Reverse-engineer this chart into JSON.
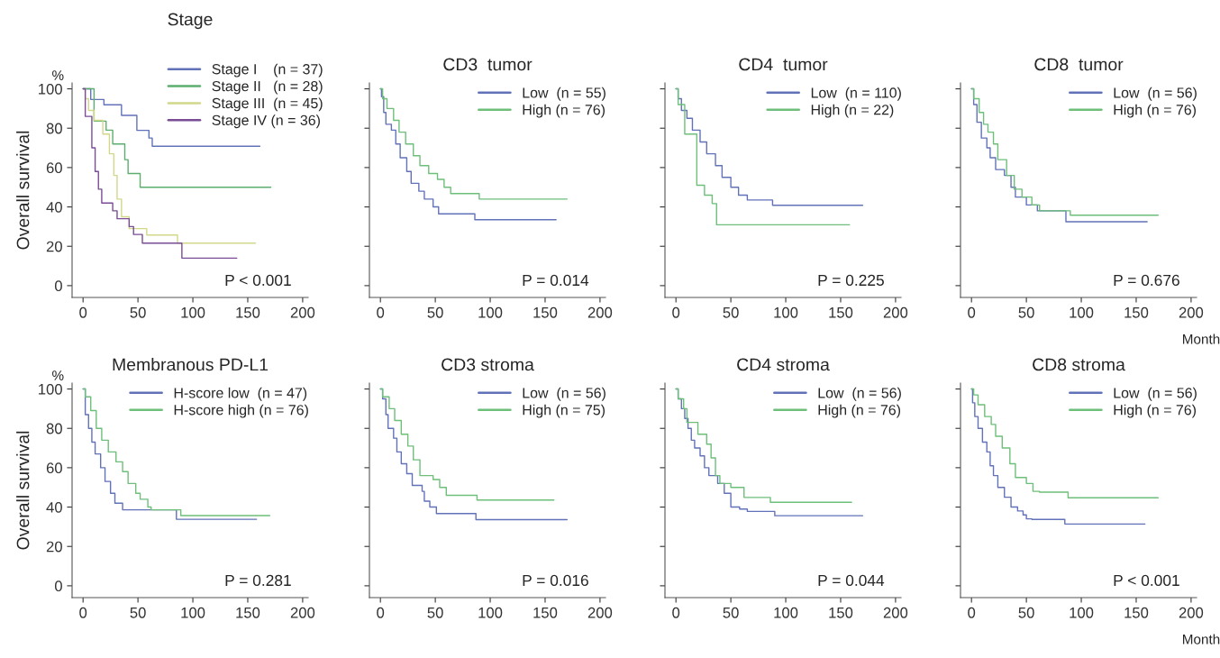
{
  "chart_data": [
    {
      "type": "step",
      "title": "Stage",
      "ylabel": "Overall survival",
      "annotations": [
        "%",
        "P < 0.001"
      ],
      "xlim": [
        -10,
        205
      ],
      "ylim": [
        -6,
        103
      ],
      "xticks": [
        0,
        50,
        100,
        150,
        200
      ],
      "yticks": [
        0,
        20,
        40,
        60,
        80,
        100
      ],
      "grid": false,
      "legend": "top right",
      "series": [
        {
          "name": "Stage I    (n = 37)",
          "color": "#6272b8",
          "x": [
            0,
            7,
            19,
            35,
            49,
            60,
            63,
            161
          ],
          "values": [
            100,
            94.6,
            91.9,
            86.5,
            78.9,
            75,
            70.8,
            70.8
          ]
        },
        {
          "name": "Stage II   (n = 28)",
          "color": "#5cae6e",
          "x": [
            0,
            10,
            21,
            27,
            38,
            41,
            52,
            171
          ],
          "values": [
            100,
            83.6,
            79,
            72,
            64,
            57,
            50,
            50
          ]
        },
        {
          "name": "Stage III  (n = 45)",
          "color": "#d2d88a",
          "x": [
            0,
            2,
            5,
            10,
            18,
            24,
            28,
            31,
            35,
            42,
            58,
            86,
            157
          ],
          "values": [
            100,
            95,
            89,
            84,
            77,
            67,
            56,
            44,
            35,
            29,
            25.7,
            21.6,
            21.6
          ]
        },
        {
          "name": "Stage IV (n = 36)",
          "color": "#7a4c96",
          "x": [
            0,
            2,
            8,
            11,
            14,
            17,
            27,
            31,
            42,
            46,
            54,
            90,
            140
          ],
          "values": [
            100,
            86,
            70,
            58,
            49,
            42,
            38,
            34,
            30,
            26,
            21.6,
            14,
            14
          ]
        }
      ]
    },
    {
      "type": "step",
      "title": "CD3  tumor",
      "annotations": [
        "P = 0.014"
      ],
      "xlim": [
        -10,
        205
      ],
      "ylim": [
        -6,
        103
      ],
      "xticks": [
        0,
        50,
        100,
        150,
        200
      ],
      "yticks": [
        0,
        20,
        40,
        60,
        80,
        100
      ],
      "tick_labels": "x",
      "grid": false,
      "legend": "top right",
      "series": [
        {
          "name": "Low  (n = 55)",
          "color": "#6272b8",
          "x": [
            0,
            1,
            3,
            5,
            10,
            14,
            18,
            24,
            28,
            35,
            40,
            48,
            53,
            86,
            160
          ],
          "values": [
            100,
            96,
            88,
            82,
            79,
            72,
            65,
            58,
            52,
            48,
            44,
            40,
            36.5,
            33.5,
            33.5
          ]
        },
        {
          "name": "High (n = 76)",
          "color": "#6dbf7a",
          "x": [
            0,
            2,
            6,
            12,
            17,
            23,
            30,
            36,
            44,
            52,
            58,
            64,
            90,
            170
          ],
          "values": [
            100,
            95,
            90,
            84,
            78,
            72,
            66,
            61,
            57,
            54,
            50,
            46.8,
            44,
            44
          ]
        }
      ]
    },
    {
      "type": "step",
      "title": "CD4  tumor",
      "annotations": [
        "P = 0.225"
      ],
      "xlim": [
        -10,
        205
      ],
      "ylim": [
        -6,
        103
      ],
      "xticks": [
        0,
        50,
        100,
        150,
        200
      ],
      "yticks": [
        0,
        20,
        40,
        60,
        80,
        100
      ],
      "tick_labels": "x",
      "grid": false,
      "legend": "top right",
      "series": [
        {
          "name": "Low  (n = 110)",
          "color": "#6272b8",
          "x": [
            0,
            2,
            5,
            10,
            15,
            22,
            28,
            36,
            42,
            50,
            57,
            65,
            88,
            170
          ],
          "values": [
            100,
            95,
            89,
            85,
            79,
            73,
            67,
            61,
            55,
            50,
            46,
            43.5,
            40.8,
            40.8
          ]
        },
        {
          "name": "High (n = 22)",
          "color": "#6dbf7a",
          "x": [
            0,
            2,
            8,
            19,
            26,
            33,
            37,
            158
          ],
          "values": [
            100,
            92,
            77,
            51,
            46,
            41.7,
            30.9,
            30.9
          ]
        }
      ]
    },
    {
      "type": "step",
      "title": "CD8  tumor",
      "xlabel": "Month",
      "annotations": [
        "P = 0.676"
      ],
      "xlim": [
        -10,
        205
      ],
      "ylim": [
        -6,
        103
      ],
      "xticks": [
        0,
        50,
        100,
        150,
        200
      ],
      "yticks": [
        0,
        20,
        40,
        60,
        80,
        100
      ],
      "tick_labels": "x",
      "grid": false,
      "legend": "top right",
      "series": [
        {
          "name": "Low  (n = 56)",
          "color": "#6272b8",
          "x": [
            0,
            2,
            5,
            9,
            14,
            17,
            22,
            30,
            36,
            40,
            50,
            60,
            86,
            160
          ],
          "values": [
            100,
            92,
            83,
            75,
            70,
            65,
            59,
            56,
            50,
            45,
            41,
            38,
            32.5,
            32.5
          ]
        },
        {
          "name": "High (n = 76)",
          "color": "#6dbf7a",
          "x": [
            0,
            2,
            7,
            11,
            15,
            20,
            24,
            32,
            39,
            46,
            55,
            62,
            90,
            170
          ],
          "values": [
            100,
            95,
            88,
            82,
            78,
            72,
            64,
            56,
            49,
            45,
            41,
            38,
            35.8,
            35.8
          ]
        }
      ]
    },
    {
      "type": "step",
      "title": "Membranous PD-L1",
      "ylabel": "Overall survival",
      "annotations": [
        "%",
        "P = 0.281"
      ],
      "xlim": [
        -10,
        205
      ],
      "ylim": [
        -6,
        103
      ],
      "xticks": [
        0,
        50,
        100,
        150,
        200
      ],
      "yticks": [
        0,
        20,
        40,
        60,
        80,
        100
      ],
      "grid": false,
      "legend": "top right",
      "series": [
        {
          "name": "H-score low  (n = 47)",
          "color": "#6272b8",
          "x": [
            0,
            2,
            5,
            8,
            11,
            16,
            20,
            25,
            29,
            36,
            85,
            158
          ],
          "values": [
            100,
            87,
            80,
            73,
            67,
            60,
            53,
            47,
            42,
            38.6,
            33.8,
            33.8
          ]
        },
        {
          "name": "H-score high (n = 76)",
          "color": "#6dbf7a",
          "x": [
            0,
            2,
            7,
            12,
            17,
            23,
            30,
            36,
            41,
            48,
            52,
            59,
            62,
            89,
            170
          ],
          "values": [
            100,
            96,
            89,
            80,
            74,
            68,
            63,
            58,
            52,
            47,
            44,
            40,
            38.6,
            35.7,
            35.7
          ]
        }
      ]
    },
    {
      "type": "step",
      "title": "CD3 stroma",
      "annotations": [
        "P = 0.016"
      ],
      "xlim": [
        -10,
        205
      ],
      "ylim": [
        -6,
        103
      ],
      "xticks": [
        0,
        50,
        100,
        150,
        200
      ],
      "yticks": [
        0,
        20,
        40,
        60,
        80,
        100
      ],
      "tick_labels": "x",
      "grid": false,
      "legend": "top right",
      "series": [
        {
          "name": "Low  (n = 56)",
          "color": "#6272b8",
          "x": [
            0,
            2,
            5,
            7,
            12,
            15,
            19,
            24,
            29,
            38,
            40,
            45,
            51,
            87,
            170
          ],
          "values": [
            100,
            95,
            87,
            80,
            75,
            68,
            62,
            57,
            51,
            48,
            43,
            40,
            36.7,
            33.6,
            33.6
          ]
        },
        {
          "name": "High (n = 75)",
          "color": "#6dbf7a",
          "x": [
            0,
            2,
            8,
            13,
            19,
            25,
            30,
            36,
            48,
            54,
            60,
            88,
            158
          ],
          "values": [
            100,
            96,
            90,
            84,
            77,
            71,
            64,
            56,
            54,
            50,
            46,
            43.6,
            43.6
          ]
        }
      ]
    },
    {
      "type": "step",
      "title": "CD4 stroma",
      "annotations": [
        "P = 0.044"
      ],
      "xlim": [
        -10,
        205
      ],
      "ylim": [
        -6,
        103
      ],
      "xticks": [
        0,
        50,
        100,
        150,
        200
      ],
      "yticks": [
        0,
        20,
        40,
        60,
        80,
        100
      ],
      "tick_labels": "x",
      "grid": false,
      "legend": "top right",
      "series": [
        {
          "name": "Low  (n = 56)",
          "color": "#6272b8",
          "x": [
            0,
            2,
            5,
            8,
            11,
            14,
            17,
            22,
            26,
            30,
            38,
            44,
            50,
            58,
            65,
            90,
            170
          ],
          "values": [
            100,
            95,
            90,
            85,
            80,
            74,
            70,
            66,
            60,
            56,
            52,
            47,
            40,
            39,
            37.8,
            35.6,
            35.6
          ]
        },
        {
          "name": "High (n = 76)",
          "color": "#6dbf7a",
          "x": [
            0,
            2,
            7,
            10,
            20,
            28,
            32,
            36,
            40,
            50,
            62,
            86,
            160
          ],
          "values": [
            100,
            95,
            90,
            83,
            77,
            72,
            65,
            56,
            52,
            50,
            44.9,
            42.4,
            42.4
          ]
        }
      ]
    },
    {
      "type": "step",
      "title": "CD8 stroma",
      "xlabel": "Month",
      "annotations": [
        "P < 0.001"
      ],
      "xlim": [
        -10,
        205
      ],
      "ylim": [
        -6,
        103
      ],
      "xticks": [
        0,
        50,
        100,
        150,
        200
      ],
      "yticks": [
        0,
        20,
        40,
        60,
        80,
        100
      ],
      "tick_labels": "x",
      "grid": false,
      "legend": "top right",
      "series": [
        {
          "name": "Low  (n = 56)",
          "color": "#6272b8",
          "x": [
            0,
            1,
            3,
            6,
            10,
            14,
            17,
            20,
            24,
            30,
            36,
            42,
            47,
            50,
            55,
            85,
            158
          ],
          "values": [
            100,
            93,
            86,
            80,
            73,
            68,
            61,
            56,
            50,
            45,
            40,
            38,
            36,
            34,
            33.7,
            31.4,
            31.4
          ]
        },
        {
          "name": "High (n = 76)",
          "color": "#6dbf7a",
          "x": [
            0,
            2,
            6,
            12,
            18,
            22,
            28,
            35,
            40,
            50,
            56,
            62,
            88,
            170
          ],
          "values": [
            100,
            97,
            92,
            86,
            82,
            76,
            70,
            62,
            55,
            52,
            48,
            47.6,
            44.7,
            44.7
          ]
        }
      ]
    }
  ]
}
